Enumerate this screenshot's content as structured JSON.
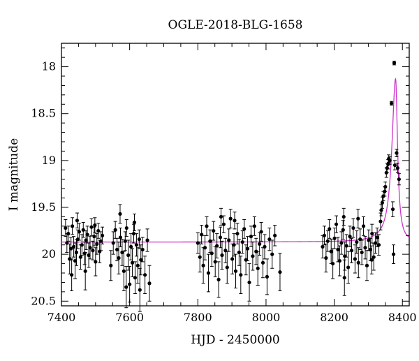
{
  "chart_data": {
    "type": "scatter",
    "title": "OGLE-2018-BLG-1658",
    "xlabel": "HJD - 2450000",
    "ylabel": "I magnitude",
    "xlim": [
      7400,
      8420
    ],
    "ylim": [
      20.55,
      17.75
    ],
    "y_inverted": true,
    "x_ticks": [
      7400,
      7600,
      7800,
      8000,
      8200,
      8400
    ],
    "y_ticks": [
      18,
      18.5,
      19,
      19.5,
      20,
      20.5
    ],
    "x_tick_labels": [
      "7400",
      "7600",
      "7800",
      "8000",
      "8200",
      "8400"
    ],
    "y_tick_labels": [
      "18",
      "18.5",
      "19",
      "19.5",
      "20",
      "20.5"
    ],
    "colors": {
      "points": "#000000",
      "model": "#cc33cc",
      "frame": "#000000"
    },
    "model": {
      "label": "",
      "baseline": 19.87,
      "peak_mag": 18.13,
      "peak_x": 8380,
      "rise_scale": 13,
      "fall_scale": 7,
      "x_range": [
        7400,
        8420
      ]
    },
    "series": [
      {
        "points": [
          [
            7412,
            19.72,
            0.09
          ],
          [
            7416,
            19.88,
            0.1
          ],
          [
            7420,
            19.78,
            0.08
          ],
          [
            7424,
            20.05,
            0.16
          ],
          [
            7428,
            19.94,
            0.12
          ],
          [
            7432,
            19.7,
            0.09
          ],
          [
            7436,
            19.92,
            0.11
          ],
          [
            7440,
            20.07,
            0.19
          ],
          [
            7444,
            19.98,
            0.14
          ],
          [
            7448,
            19.84,
            0.1
          ],
          [
            7452,
            19.76,
            0.09
          ],
          [
            7456,
            20.03,
            0.13
          ],
          [
            7460,
            19.9,
            0.11
          ],
          [
            7464,
            19.74,
            0.08
          ],
          [
            7468,
            19.99,
            0.12
          ],
          [
            7472,
            19.85,
            0.1
          ],
          [
            7476,
            19.79,
            0.09
          ],
          [
            7480,
            20.01,
            0.13
          ],
          [
            7484,
            19.93,
            0.12
          ],
          [
            7488,
            19.71,
            0.09
          ],
          [
            7492,
            19.96,
            0.1
          ],
          [
            7496,
            19.81,
            0.1
          ],
          [
            7500,
            20.08,
            0.15
          ],
          [
            7504,
            19.89,
            0.11
          ],
          [
            7508,
            19.75,
            0.08
          ],
          [
            7512,
            19.97,
            0.12
          ],
          [
            7516,
            19.86,
            0.1
          ],
          [
            7520,
            19.8,
            0.09
          ],
          [
            7430,
            20.22,
            0.17
          ],
          [
            7446,
            19.64,
            0.08
          ],
          [
            7470,
            20.18,
            0.2
          ],
          [
            7498,
            19.69,
            0.08
          ],
          [
            7545,
            20.12,
            0.16
          ],
          [
            7552,
            19.88,
            0.12
          ],
          [
            7558,
            19.74,
            0.09
          ],
          [
            7563,
            19.95,
            0.12
          ],
          [
            7568,
            20.04,
            0.17
          ],
          [
            7573,
            19.82,
            0.1
          ],
          [
            7578,
            19.98,
            0.14
          ],
          [
            7583,
            20.18,
            0.21
          ],
          [
            7587,
            19.86,
            0.1
          ],
          [
            7591,
            19.72,
            0.09
          ],
          [
            7596,
            20.01,
            0.16
          ],
          [
            7600,
            20.32,
            0.19
          ],
          [
            7604,
            19.92,
            0.14
          ],
          [
            7608,
            20.09,
            0.15
          ],
          [
            7612,
            19.78,
            0.1
          ],
          [
            7616,
            20.25,
            0.17
          ],
          [
            7620,
            19.9,
            0.12
          ],
          [
            7624,
            20.12,
            0.19
          ],
          [
            7628,
            19.84,
            0.1
          ],
          [
            7633,
            20.06,
            0.16
          ],
          [
            7638,
            19.95,
            0.13
          ],
          [
            7645,
            20.22,
            0.2
          ],
          [
            7652,
            19.85,
            0.12
          ],
          [
            7658,
            20.31,
            0.19
          ],
          [
            7572,
            19.57,
            0.1
          ],
          [
            7590,
            20.35,
            0.22
          ],
          [
            7614,
            19.66,
            0.09
          ],
          [
            7630,
            20.38,
            0.23
          ],
          [
            7800,
            19.88,
            0.11
          ],
          [
            7806,
            20.03,
            0.16
          ],
          [
            7811,
            19.79,
            0.1
          ],
          [
            7816,
            20.12,
            0.19
          ],
          [
            7821,
            19.93,
            0.13
          ],
          [
            7826,
            19.7,
            0.1
          ],
          [
            7831,
            20.2,
            0.2
          ],
          [
            7836,
            19.86,
            0.12
          ],
          [
            7841,
            19.99,
            0.14
          ],
          [
            7846,
            19.75,
            0.1
          ],
          [
            7851,
            20.08,
            0.16
          ],
          [
            7856,
            19.91,
            0.13
          ],
          [
            7861,
            20.27,
            0.19
          ],
          [
            7866,
            19.82,
            0.11
          ],
          [
            7871,
            20.01,
            0.15
          ],
          [
            7876,
            19.68,
            0.09
          ],
          [
            7881,
            19.96,
            0.13
          ],
          [
            7886,
            20.14,
            0.17
          ],
          [
            7891,
            19.85,
            0.12
          ],
          [
            7896,
            19.62,
            0.1
          ],
          [
            7901,
            20.05,
            0.16
          ],
          [
            7906,
            19.9,
            0.12
          ],
          [
            7911,
            20.18,
            0.18
          ],
          [
            7916,
            19.78,
            0.11
          ],
          [
            7921,
            19.98,
            0.14
          ],
          [
            7926,
            20.22,
            0.2
          ],
          [
            7931,
            19.87,
            0.12
          ],
          [
            7936,
            19.73,
            0.1
          ],
          [
            7941,
            20.06,
            0.16
          ],
          [
            7946,
            19.94,
            0.13
          ],
          [
            7951,
            20.3,
            0.2
          ],
          [
            7956,
            19.81,
            0.11
          ],
          [
            7961,
            20.02,
            0.15
          ],
          [
            7966,
            19.7,
            0.1
          ],
          [
            7971,
            19.97,
            0.14
          ],
          [
            7976,
            20.15,
            0.18
          ],
          [
            7981,
            19.89,
            0.12
          ],
          [
            7986,
            19.76,
            0.1
          ],
          [
            7991,
            20.09,
            0.16
          ],
          [
            7996,
            19.92,
            0.13
          ],
          [
            8003,
            20.24,
            0.19
          ],
          [
            8010,
            19.84,
            0.12
          ],
          [
            8018,
            20.0,
            0.15
          ],
          [
            8026,
            19.8,
            0.11
          ],
          [
            8041,
            20.19,
            0.2
          ],
          [
            7868,
            19.6,
            0.09
          ],
          [
            7908,
            19.64,
            0.09
          ],
          [
            8166,
            19.92,
            0.12
          ],
          [
            8171,
            19.8,
            0.1
          ],
          [
            8176,
            20.04,
            0.15
          ],
          [
            8181,
            19.86,
            0.11
          ],
          [
            8186,
            19.73,
            0.1
          ],
          [
            8191,
            19.97,
            0.13
          ],
          [
            8196,
            20.1,
            0.16
          ],
          [
            8201,
            19.83,
            0.11
          ],
          [
            8206,
            19.68,
            0.09
          ],
          [
            8211,
            19.95,
            0.13
          ],
          [
            8216,
            20.07,
            0.16
          ],
          [
            8221,
            19.88,
            0.12
          ],
          [
            8226,
            19.74,
            0.1
          ],
          [
            8231,
            20.02,
            0.15
          ],
          [
            8236,
            19.91,
            0.12
          ],
          [
            8241,
            20.14,
            0.17
          ],
          [
            8246,
            19.81,
            0.11
          ],
          [
            8251,
            19.96,
            0.13
          ],
          [
            8256,
            19.72,
            0.1
          ],
          [
            8261,
            20.05,
            0.15
          ],
          [
            8266,
            19.87,
            0.12
          ],
          [
            8271,
            20.09,
            0.16
          ],
          [
            8276,
            19.84,
            0.11
          ],
          [
            8281,
            19.98,
            0.13
          ],
          [
            8286,
            19.7,
            0.1
          ],
          [
            8291,
            19.93,
            0.12
          ],
          [
            8296,
            20.12,
            0.16
          ],
          [
            8301,
            19.85,
            0.11
          ],
          [
            8306,
            19.95,
            0.12
          ],
          [
            8311,
            19.78,
            0.1
          ],
          [
            8316,
            20.03,
            0.14
          ],
          [
            8321,
            19.88,
            0.11
          ],
          [
            8326,
            19.82,
            0.1
          ],
          [
            8331,
            19.9,
            0.11
          ],
          [
            8336,
            19.65,
            0.09
          ],
          [
            8230,
            20.25,
            0.19
          ],
          [
            8270,
            19.62,
            0.1
          ],
          [
            8310,
            20.06,
            0.15
          ],
          [
            8228,
            19.6,
            0.09
          ],
          [
            8338,
            19.53,
            0.06
          ],
          [
            8341,
            19.45,
            0.06
          ],
          [
            8344,
            19.38,
            0.05
          ],
          [
            8348,
            19.33,
            0.05
          ],
          [
            8350,
            19.28,
            0.05
          ],
          [
            8353,
            19.13,
            0.05
          ],
          [
            8355,
            19.08,
            0.05
          ],
          [
            8358,
            19.04,
            0.05
          ],
          [
            8360,
            18.98,
            0.04
          ],
          [
            8363,
            19.0,
            0.04
          ],
          [
            8372,
            19.52,
            0.08
          ],
          [
            8378,
            19.05,
            0.05
          ],
          [
            8383,
            18.92,
            0.04
          ],
          [
            8386,
            19.08,
            0.05
          ],
          [
            8390,
            19.2,
            0.06
          ],
          [
            8368,
            18.39,
            0.02
          ],
          [
            8376,
            17.96,
            0.02
          ],
          [
            8374,
            20.0,
            0.1
          ]
        ]
      }
    ]
  }
}
